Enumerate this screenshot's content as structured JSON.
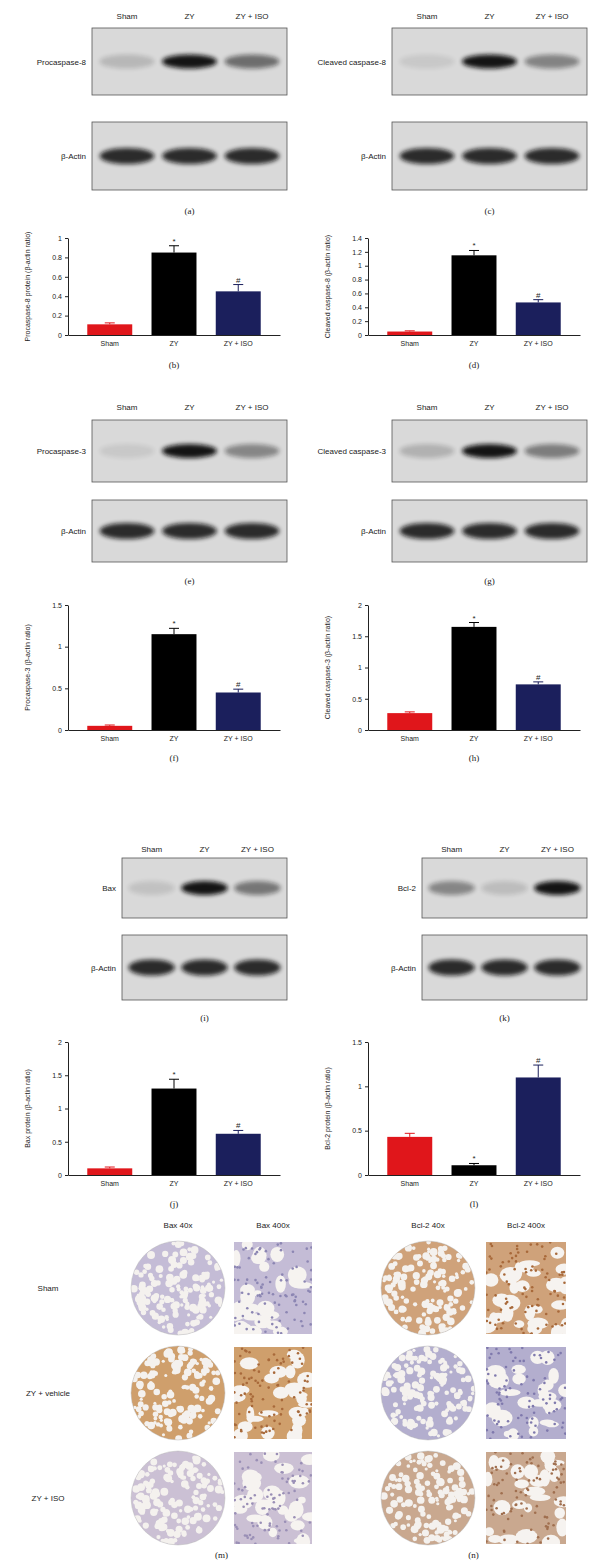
{
  "chart_data": [
    {
      "type": "bar",
      "panel": "(b)",
      "y_label": "Procaspase-8 protein (β-actin ratio)",
      "categories": [
        "Sham",
        "ZY",
        "ZY + ISO"
      ],
      "values": [
        0.11,
        0.85,
        0.45
      ],
      "errors": [
        0.015,
        0.07,
        0.07
      ],
      "significance": [
        null,
        "*",
        "#"
      ],
      "colors": [
        "#e0161b",
        "#000000",
        "#1b1f5c"
      ],
      "ylim": [
        0,
        1
      ],
      "yticks": [
        0,
        0.2,
        0.4,
        0.6,
        0.8,
        1
      ]
    },
    {
      "type": "bar",
      "panel": "(d)",
      "y_label": "Cleaved caspase-8 (β-actin ratio)",
      "categories": [
        "Sham",
        "ZY",
        "ZY + ISO"
      ],
      "values": [
        0.05,
        1.15,
        0.47
      ],
      "errors": [
        0.01,
        0.07,
        0.04
      ],
      "significance": [
        null,
        "*",
        "#"
      ],
      "colors": [
        "#e0161b",
        "#000000",
        "#1b1f5c"
      ],
      "ylim": [
        0,
        1.4
      ],
      "yticks": [
        0,
        0.2,
        0.4,
        0.6,
        0.8,
        1,
        1.2,
        1.4
      ]
    },
    {
      "type": "bar",
      "panel": "(f)",
      "y_label": "Procaspase-3 (β-actin ratio)",
      "categories": [
        "Sham",
        "ZY",
        "ZY + ISO"
      ],
      "values": [
        0.05,
        1.15,
        0.45
      ],
      "errors": [
        0.01,
        0.07,
        0.04
      ],
      "significance": [
        null,
        "*",
        "#"
      ],
      "colors": [
        "#e0161b",
        "#000000",
        "#1b1f5c"
      ],
      "ylim": [
        0,
        1.5
      ],
      "yticks": [
        0,
        0.5,
        1,
        1.5
      ]
    },
    {
      "type": "bar",
      "panel": "(h)",
      "y_label": "Cleaved caspase-3 (β-actin ratio)",
      "categories": [
        "Sham",
        "ZY",
        "ZY + ISO"
      ],
      "values": [
        0.27,
        1.65,
        0.73
      ],
      "errors": [
        0.02,
        0.07,
        0.04
      ],
      "significance": [
        null,
        "*",
        "#"
      ],
      "colors": [
        "#e0161b",
        "#000000",
        "#1b1f5c"
      ],
      "ylim": [
        0,
        2
      ],
      "yticks": [
        0,
        0.5,
        1,
        1.5,
        2
      ]
    },
    {
      "type": "bar",
      "panel": "(j)",
      "y_label": "Bax protein (β-actin ratio)",
      "categories": [
        "Sham",
        "ZY",
        "ZY + ISO"
      ],
      "values": [
        0.1,
        1.3,
        0.62
      ],
      "errors": [
        0.02,
        0.14,
        0.05
      ],
      "significance": [
        null,
        "*",
        "#"
      ],
      "colors": [
        "#e0161b",
        "#000000",
        "#1b1f5c"
      ],
      "ylim": [
        0,
        2
      ],
      "yticks": [
        0,
        0.5,
        1,
        1.5,
        2
      ]
    },
    {
      "type": "bar",
      "panel": "(l)",
      "y_label": "Bcl-2 protein (β-actin ratio)",
      "categories": [
        "Sham",
        "ZY",
        "ZY + ISO"
      ],
      "values": [
        0.43,
        0.11,
        1.1
      ],
      "errors": [
        0.04,
        0.02,
        0.14
      ],
      "significance": [
        null,
        "*",
        "#"
      ],
      "colors": [
        "#e0161b",
        "#000000",
        "#1b1f5c"
      ],
      "ylim": [
        0,
        1.5
      ],
      "yticks": [
        0,
        0.5,
        1,
        1.5
      ]
    }
  ],
  "blots": [
    {
      "panel": "(a)",
      "lanes": [
        "Sham",
        "ZY",
        "ZY + ISO"
      ],
      "target": "Procaspase-8",
      "control": "β-Actin"
    },
    {
      "panel": "(c)",
      "lanes": [
        "Sham",
        "ZY",
        "ZY + ISO"
      ],
      "target": "Cleaved caspase-8",
      "control": "β-Actin"
    },
    {
      "panel": "(e)",
      "lanes": [
        "Sham",
        "ZY",
        "ZY + ISO"
      ],
      "target": "Procaspase-3",
      "control": "β-Actin"
    },
    {
      "panel": "(g)",
      "lanes": [
        "Sham",
        "ZY",
        "ZY + ISO"
      ],
      "target": "Cleaved caspase-3",
      "control": "β-Actin"
    },
    {
      "panel": "(i)",
      "lanes": [
        "Sham",
        "ZY",
        "ZY + ISO"
      ],
      "target": "Bax",
      "control": "β-Actin"
    },
    {
      "panel": "(k)",
      "lanes": [
        "Sham",
        "ZY",
        "ZY + ISO"
      ],
      "target": "Bcl-2",
      "control": "β-Actin"
    }
  ],
  "ihc": [
    {
      "panel": "(m)",
      "headers": [
        "Bax 40x",
        "Bax 400x"
      ],
      "rows": [
        "Sham",
        "ZY + vehicle",
        "ZY + ISO"
      ]
    },
    {
      "panel": "(n)",
      "headers": [
        "Bcl-2 40x",
        "Bcl-2 400x"
      ]
    }
  ]
}
